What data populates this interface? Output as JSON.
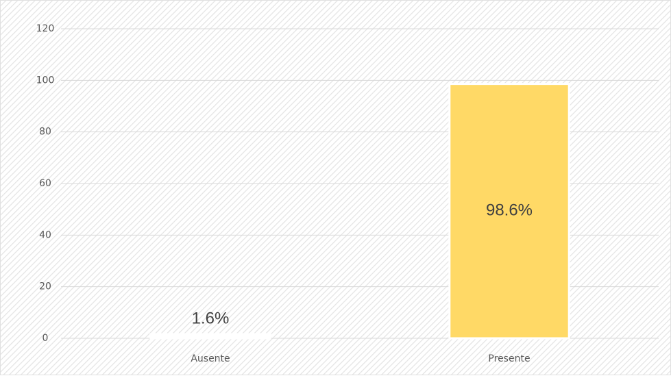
{
  "chart_data": {
    "type": "bar",
    "categories": [
      "Ausente",
      "Presente"
    ],
    "values": [
      1.6,
      98.6
    ],
    "value_labels": [
      "1.6%",
      "98.6%"
    ],
    "colors": [
      "#ffffff",
      "#ffd966"
    ],
    "ylim": [
      0,
      120
    ],
    "yticks": [
      0,
      20,
      40,
      60,
      80,
      100,
      120
    ],
    "grid": true
  }
}
